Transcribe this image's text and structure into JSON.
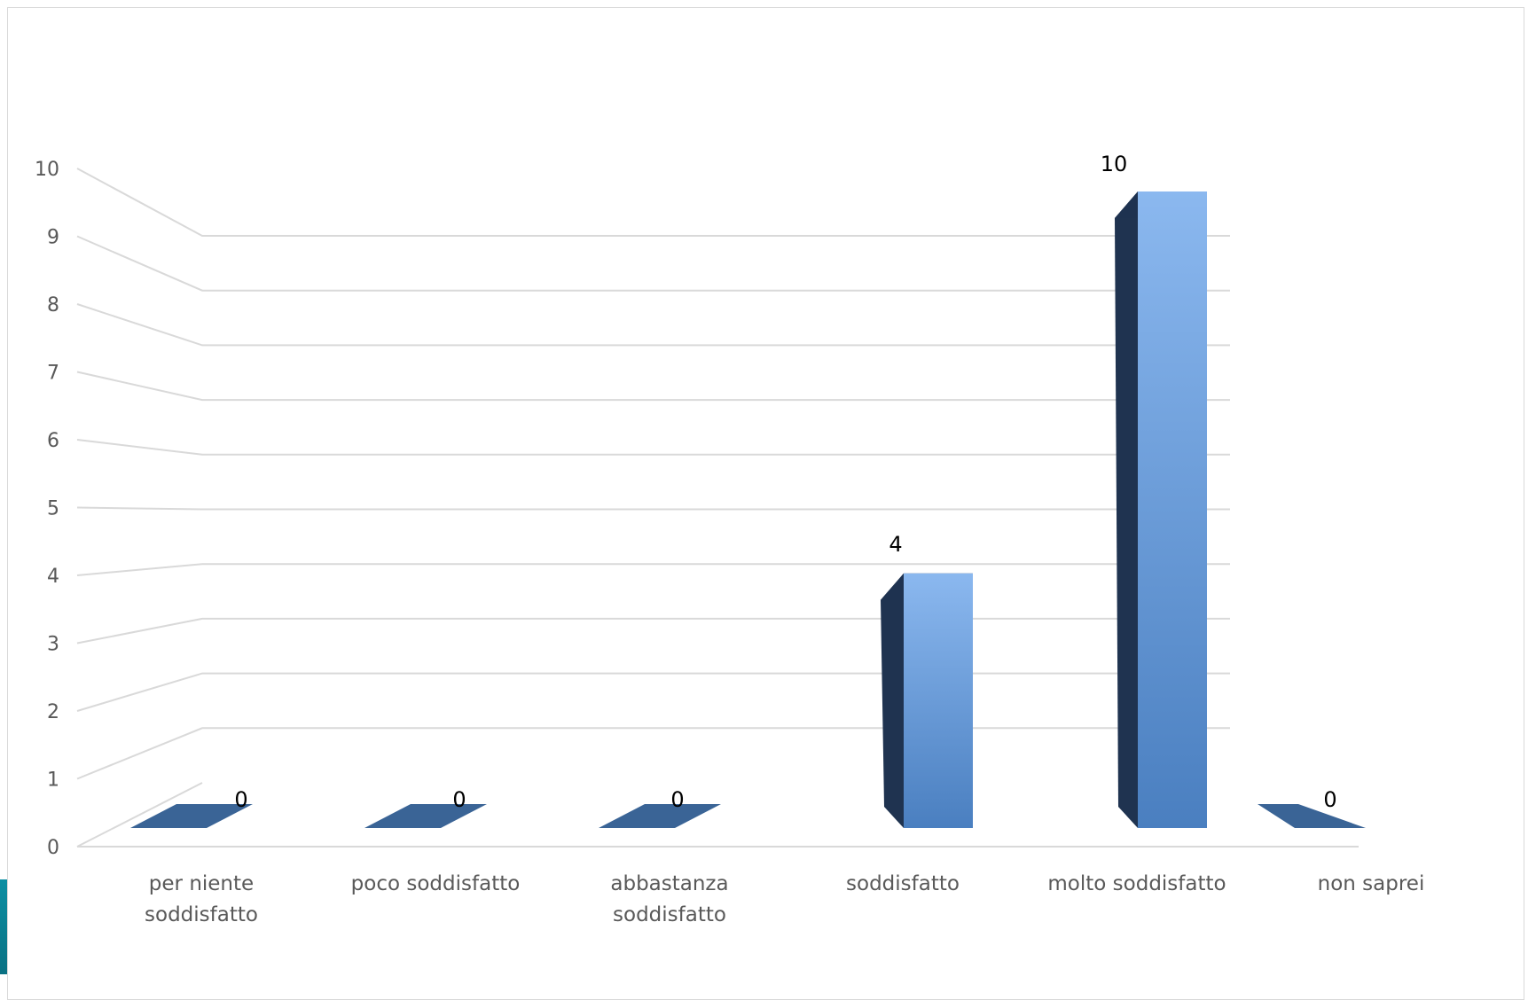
{
  "chart_data": {
    "type": "bar",
    "categories": [
      [
        "per niente",
        "soddisfatto"
      ],
      [
        "poco soddisfatto"
      ],
      [
        "abbastanza",
        "soddisfatto"
      ],
      [
        "soddisfatto"
      ],
      [
        "molto soddisfatto"
      ],
      [
        "non saprei"
      ]
    ],
    "values": [
      0,
      0,
      0,
      4,
      10,
      0
    ],
    "data_labels": [
      "0",
      "0",
      "0",
      "4",
      "10",
      "0"
    ],
    "yticks": [
      "0",
      "1",
      "2",
      "3",
      "4",
      "5",
      "6",
      "7",
      "8",
      "9",
      "10"
    ],
    "ylim": [
      0,
      10
    ],
    "grid": true,
    "legend": "none",
    "style": "3d-perspective",
    "colors": {
      "bar_top": "#8bb8ef",
      "bar_bottom": "#4a7fc0",
      "bar_side": "#1f3350",
      "flat_bar": "#3a6496",
      "grid": "#d9d9d9",
      "accent": "#0b8fa3"
    }
  }
}
